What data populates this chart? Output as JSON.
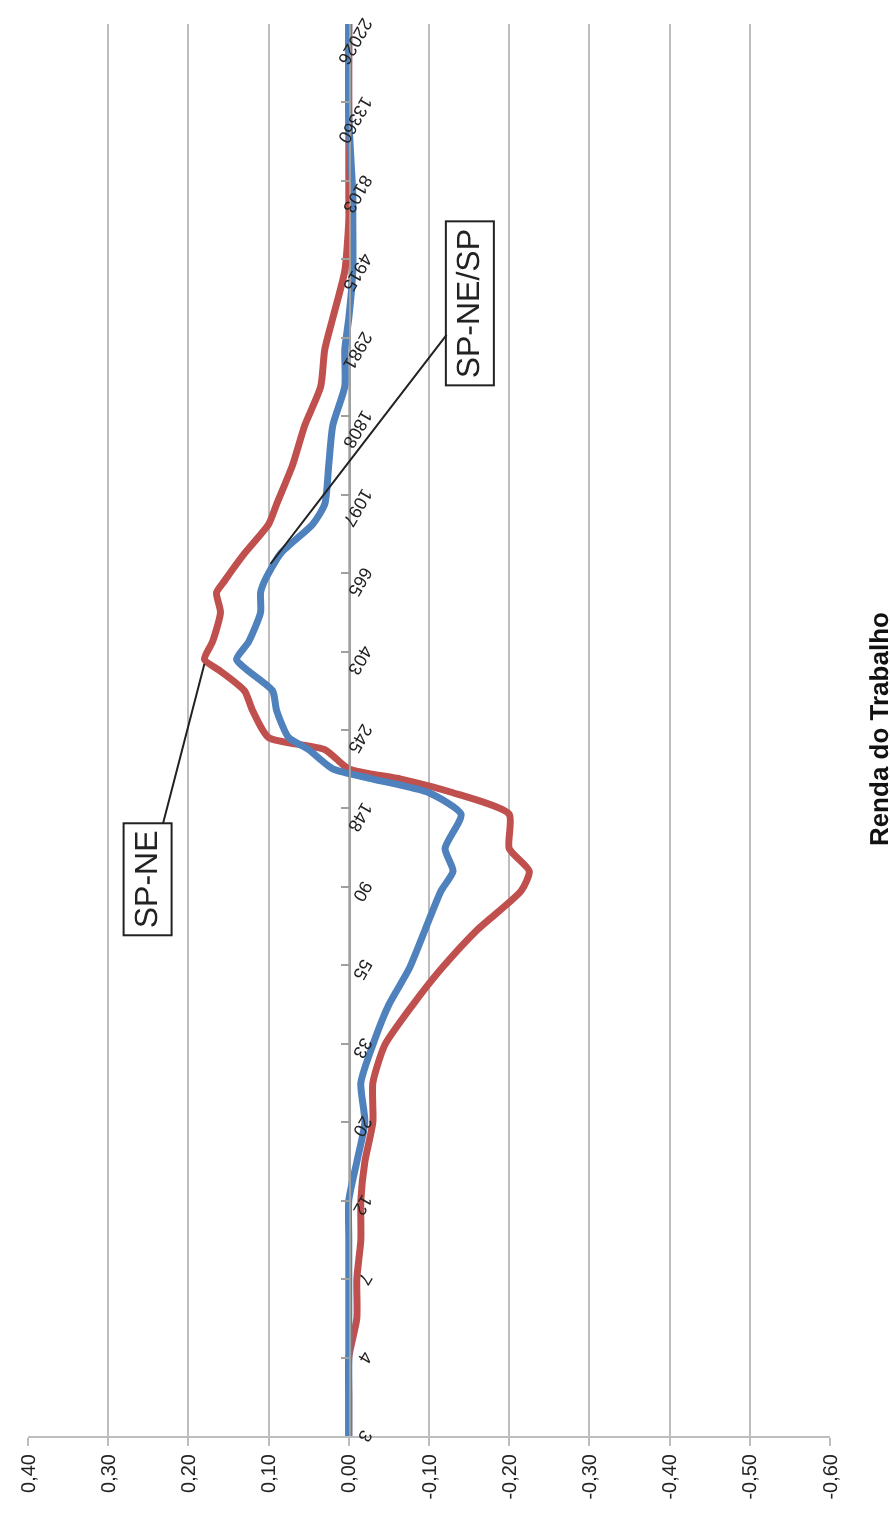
{
  "chart_data": {
    "type": "line",
    "orientation": "horizontal",
    "title": "Renda do Trabalho",
    "log": "y",
    "ylim": [
      2.718,
      22026
    ],
    "yticks": [
      {
        "value": 2.718,
        "label": "3"
      },
      {
        "value": 4.482,
        "label": "4"
      },
      {
        "value": 7.389,
        "label": "7"
      },
      {
        "value": 12.18,
        "label": "12"
      },
      {
        "value": 20.09,
        "label": "20"
      },
      {
        "value": 33.12,
        "label": "33"
      },
      {
        "value": 54.6,
        "label": "55"
      },
      {
        "value": 90.02,
        "label": "90"
      },
      {
        "value": 148.4,
        "label": "148"
      },
      {
        "value": 244.7,
        "label": "245"
      },
      {
        "value": 403.4,
        "label": "403"
      },
      {
        "value": 665.1,
        "label": "665"
      },
      {
        "value": 1096.6,
        "label": "1097"
      },
      {
        "value": 1808,
        "label": "1808"
      },
      {
        "value": 2981,
        "label": "2981"
      },
      {
        "value": 4915,
        "label": "4915"
      },
      {
        "value": 8103,
        "label": "8103"
      },
      {
        "value": 13360,
        "label": "13360"
      },
      {
        "value": 22026,
        "label": "22026"
      }
    ],
    "xlim": [
      0.4,
      -0.6
    ],
    "xticks": [
      {
        "value": 0.4,
        "label": "0,40"
      },
      {
        "value": 0.3,
        "label": "0,30"
      },
      {
        "value": 0.2,
        "label": "0,20"
      },
      {
        "value": 0.1,
        "label": "0,10"
      },
      {
        "value": 0,
        "label": "0,00"
      },
      {
        "value": -0.1,
        "label": "-0,10"
      },
      {
        "value": -0.2,
        "label": "-0,20"
      },
      {
        "value": -0.3,
        "label": "-0,30"
      },
      {
        "value": -0.4,
        "label": "-0,40"
      },
      {
        "value": -0.5,
        "label": "-0,50"
      },
      {
        "value": -0.6,
        "label": "-0,60"
      }
    ],
    "grid": "x",
    "marker": "none",
    "line_style": "solid",
    "x": [
      2.72,
      3.49,
      4.48,
      5.75,
      7.39,
      9.49,
      12.2,
      15.6,
      20.1,
      25.8,
      32.9,
      42.5,
      53.3,
      68.4,
      87.8,
      99.5,
      115,
      143,
      164,
      179,
      191,
      216,
      233,
      277,
      314,
      356,
      384,
      429,
      518,
      587,
      633,
      754,
      908,
      1032,
      1326,
      1703,
      2187,
      2766,
      3378,
      4565,
      6310,
      7403,
      12200,
      22026
    ],
    "series": [
      {
        "color": "#c0504d",
        "values": [
          0.0,
          0.0,
          0.0,
          -0.01,
          -0.01,
          -0.015,
          -0.015,
          -0.02,
          -0.03,
          -0.03,
          -0.045,
          -0.08,
          -0.115,
          -0.16,
          -0.215,
          -0.225,
          -0.2,
          -0.2,
          -0.13,
          -0.065,
          0.0,
          0.03,
          0.1,
          0.12,
          0.13,
          0.16,
          0.18,
          0.17,
          0.16,
          0.165,
          0.155,
          0.13,
          0.1,
          0.09,
          0.07,
          0.055,
          0.035,
          0.03,
          0.02,
          0.005,
          0.0,
          0.0,
          0.0,
          0.0
        ]
      },
      {
        "color": "#4f81bd",
        "values": [
          0.0,
          0.0,
          0.0,
          0.0,
          0.0,
          0.0,
          0.0,
          -0.01,
          -0.02,
          -0.015,
          -0.03,
          -0.05,
          -0.075,
          -0.095,
          -0.115,
          -0.13,
          -0.12,
          -0.14,
          -0.1,
          -0.03,
          0.02,
          0.05,
          0.075,
          0.09,
          0.095,
          0.125,
          0.14,
          0.125,
          0.11,
          0.11,
          0.105,
          0.085,
          0.045,
          0.03,
          0.025,
          0.02,
          0.005,
          0.005,
          0.0,
          -0.005,
          -0.005,
          -0.005,
          0.0,
          0.0
        ]
      }
    ],
    "annotations": [
      {
        "text": "SP-NE",
        "x": 0.18,
        "y": 373
      },
      {
        "text": "SP-NE/SP",
        "x": 0.0975,
        "y": 706
      }
    ]
  }
}
